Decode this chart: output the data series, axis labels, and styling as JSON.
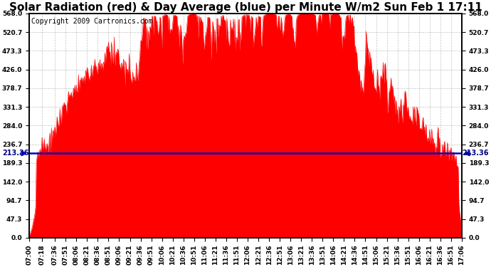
{
  "title": "Solar Radiation (red) & Day Average (blue) per Minute W/m2 Sun Feb 1 17:11",
  "copyright": "Copyright 2009 Cartronics.com",
  "avg_line_value": 213.36,
  "avg_label": "213.36",
  "y_ticks": [
    0.0,
    47.3,
    94.7,
    142.0,
    189.3,
    236.7,
    284.0,
    331.3,
    378.7,
    426.0,
    473.3,
    520.7,
    568.0
  ],
  "y_max": 568.0,
  "y_min": 0.0,
  "fill_color": "#ff0000",
  "line_color": "#0000cc",
  "bg_color": "#ffffff",
  "plot_bg_color": "#ffffff",
  "grid_color": "#999999",
  "title_fontsize": 11,
  "tick_label_fontsize": 6.5,
  "copyright_fontsize": 7,
  "x_tick_minutes": [
    0,
    18,
    36,
    51,
    66,
    81,
    96,
    111,
    126,
    141,
    156,
    171,
    186,
    201,
    216,
    231,
    246,
    261,
    276,
    291,
    306,
    321,
    336,
    351,
    366,
    381,
    396,
    411,
    426,
    441,
    456,
    471,
    486,
    501,
    516,
    531,
    546,
    561,
    576,
    591,
    606
  ],
  "x_tick_labels": [
    "07:00",
    "07:18",
    "07:36",
    "07:51",
    "08:06",
    "08:21",
    "08:36",
    "08:51",
    "09:06",
    "09:21",
    "09:36",
    "09:51",
    "10:06",
    "10:21",
    "10:36",
    "10:51",
    "11:06",
    "11:21",
    "11:36",
    "11:51",
    "12:06",
    "12:21",
    "12:36",
    "12:51",
    "13:06",
    "13:21",
    "13:36",
    "13:51",
    "14:06",
    "14:21",
    "14:36",
    "14:51",
    "15:06",
    "15:21",
    "15:36",
    "15:51",
    "16:06",
    "16:21",
    "16:36",
    "16:51",
    "17:06"
  ]
}
